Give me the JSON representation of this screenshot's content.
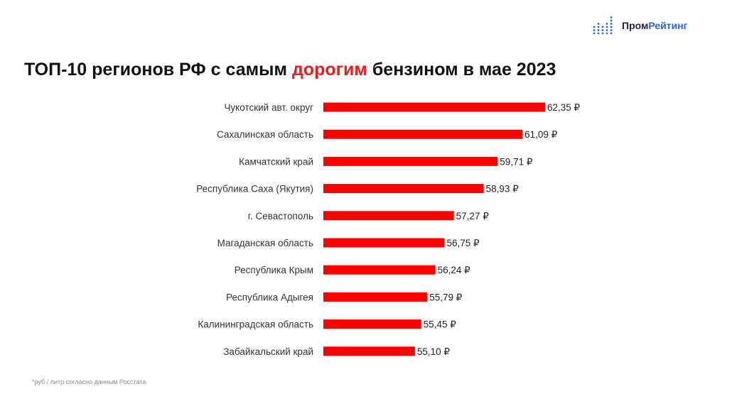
{
  "brand": {
    "name_part1": "Пром",
    "name_part2": "Рейтинг",
    "icon": "dot-matrix-bars-icon",
    "colors": {
      "dark": "#1b2540",
      "accent": "#2f5fe0"
    }
  },
  "title": {
    "before": "ТОП-10 регионов РФ с самым ",
    "highlight": "дорогим",
    "after": " бензином в мае 2023",
    "highlight_color": "#ea1c1c"
  },
  "footnote": "*руб / литр согласно данным Росстата",
  "chart_data": {
    "type": "bar",
    "orientation": "horizontal",
    "categories": [
      "Чукотский авт. округ",
      "Сахалинская область",
      "Камчатский край",
      "Республика Саха (Якутия)",
      "г. Севастополь",
      "Магаданская область",
      "Республика Крым",
      "Республика Адыгея",
      "Калининградская область",
      "Забайкальский край"
    ],
    "values": [
      62.35,
      61.09,
      59.71,
      58.93,
      57.27,
      56.75,
      56.24,
      55.79,
      55.45,
      55.1
    ],
    "value_labels": [
      "62,35 ₽",
      "61,09 ₽",
      "59,71 ₽",
      "58,93 ₽",
      "57,27 ₽",
      "56,75 ₽",
      "56,24 ₽",
      "55,79 ₽",
      "55,45 ₽",
      "55,10 ₽"
    ],
    "xlim": [
      50,
      62.35
    ],
    "bar_color": "#ff0000",
    "grid": false,
    "legend": "none"
  }
}
